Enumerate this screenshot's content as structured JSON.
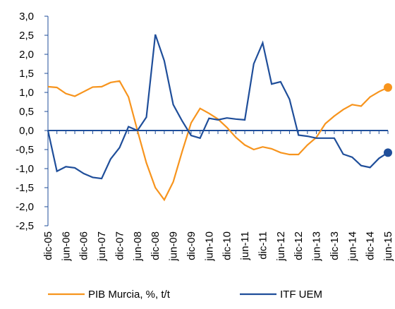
{
  "chart_data": {
    "type": "line",
    "categories": [
      "dic-05",
      null,
      "jun-06",
      null,
      "dic-06",
      null,
      "jun-07",
      null,
      "dic-07",
      null,
      "jun-08",
      null,
      "dic-08",
      null,
      "jun-09",
      null,
      "dic-09",
      null,
      "jun-10",
      null,
      "dic-10",
      null,
      "jun-11",
      null,
      "dic-11",
      null,
      "jun-12",
      null,
      "dic-12",
      null,
      "jun-13",
      null,
      "dic-13",
      null,
      "jun-14",
      null,
      "dic-14",
      null,
      "jun-15"
    ],
    "series": [
      {
        "name": "PIB Murcia, %, t/t",
        "color": "#f7941d",
        "values": [
          1.15,
          1.13,
          0.97,
          0.9,
          1.02,
          1.14,
          1.15,
          1.26,
          1.3,
          0.88,
          0.0,
          -0.85,
          -1.5,
          -1.82,
          -1.35,
          -0.55,
          0.2,
          0.58,
          0.45,
          0.3,
          0.08,
          -0.18,
          -0.38,
          -0.5,
          -0.43,
          -0.48,
          -0.58,
          -0.63,
          -0.63,
          -0.38,
          -0.18,
          0.18,
          0.38,
          0.55,
          0.68,
          0.64,
          0.88,
          1.02,
          1.13
        ]
      },
      {
        "name": "ITF UEM",
        "color": "#1f4e9a",
        "values": [
          0.0,
          -1.07,
          -0.95,
          -0.98,
          -1.13,
          -1.23,
          -1.26,
          -0.75,
          -0.45,
          0.1,
          0.0,
          0.35,
          2.52,
          1.83,
          0.68,
          0.25,
          -0.13,
          -0.2,
          0.32,
          0.28,
          0.33,
          0.3,
          0.28,
          1.75,
          2.3,
          1.22,
          1.28,
          0.82,
          -0.12,
          -0.15,
          -0.2,
          -0.2,
          -0.2,
          -0.62,
          -0.7,
          -0.92,
          -0.97,
          -0.73,
          -0.58
        ]
      }
    ],
    "ylim": [
      -2.5,
      3.0
    ],
    "yticks": [
      {
        "value": -2.5,
        "label": "-2,5"
      },
      {
        "value": -2,
        "label": "-2,0"
      },
      {
        "value": -1.5,
        "label": "-1,5"
      },
      {
        "value": -1,
        "label": "-1,0"
      },
      {
        "value": -0.5,
        "label": "-0,5"
      },
      {
        "value": 0,
        "label": "0,0"
      },
      {
        "value": 0.5,
        "label": "0,5"
      },
      {
        "value": 1,
        "label": "1,0"
      },
      {
        "value": 1.5,
        "label": "1,5"
      },
      {
        "value": 2,
        "label": "2,0"
      },
      {
        "value": 2.5,
        "label": "2,5"
      },
      {
        "value": 3,
        "label": "3,0"
      }
    ],
    "legend": "bottom",
    "axis_color": "#1f4e9a"
  }
}
